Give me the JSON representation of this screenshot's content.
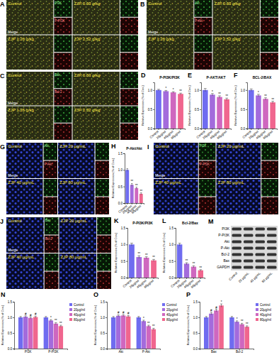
{
  "chart_data": [
    {
      "type": "bar",
      "panel": "D",
      "title": "P-PI3K/PI3K",
      "y_label": "Relative Expression (% of Con.)",
      "categories": [
        "Control",
        "20μg/ml",
        "40μg/ml",
        "80μg/ml"
      ],
      "values": [
        1.0,
        0.97,
        0.94,
        0.9
      ],
      "errors": [
        0.02,
        0.02,
        0.02,
        0.02
      ],
      "annotations": [
        null,
        "*",
        "*",
        "**"
      ],
      "colors": [
        "#6f6cf0",
        "#a36bdc",
        "#cf67bf",
        "#f0668e"
      ],
      "ylim": [
        0,
        1.2
      ],
      "yticks": [
        {
          "value": 0,
          "label": "0.0"
        },
        {
          "value": 0.5,
          "label": "0.5"
        },
        {
          "value": 1,
          "label": "1.0"
        }
      ]
    },
    {
      "type": "bar",
      "panel": "E",
      "title": "P-AKT/AKT",
      "y_label": "Relative Expression (% of Con.)",
      "categories": [
        "Control",
        "20μg/ml",
        "40μg/ml",
        "80μg/ml"
      ],
      "values": [
        1.0,
        0.88,
        0.82,
        0.76
      ],
      "errors": [
        0.04,
        0.03,
        0.03,
        0.03
      ],
      "annotations": [
        null,
        "*",
        "**",
        "**"
      ],
      "colors": [
        "#6f6cf0",
        "#a36bdc",
        "#cf67bf",
        "#f0668e"
      ],
      "ylim": [
        0,
        1.2
      ],
      "yticks": [
        {
          "value": 0,
          "label": "0.0"
        },
        {
          "value": 0.5,
          "label": "0.5"
        },
        {
          "value": 1,
          "label": "1.0"
        }
      ]
    },
    {
      "type": "bar",
      "panel": "F",
      "title": "BCL-2/BAX",
      "y_label": "Relative Expression (% of Con.)",
      "categories": [
        "Control",
        "20μg/ml",
        "40μg/ml",
        "80μg/ml"
      ],
      "values": [
        1.0,
        0.86,
        0.77,
        0.68
      ],
      "errors": [
        0.03,
        0.03,
        0.03,
        0.03
      ],
      "annotations": [
        null,
        "*",
        "**",
        "**"
      ],
      "colors": [
        "#6f6cf0",
        "#a36bdc",
        "#cf67bf",
        "#f0668e"
      ],
      "ylim": [
        0,
        1.2
      ],
      "yticks": [
        {
          "value": 0,
          "label": "0.0"
        },
        {
          "value": 0.5,
          "label": "0.5"
        },
        {
          "value": 1,
          "label": "1.0"
        }
      ]
    },
    {
      "type": "bar",
      "panel": "H",
      "title": "P-Akt/Akt",
      "y_label": "Relative Expression (% of Con.)",
      "categories": [
        "Control",
        "20μg/ml",
        "40μg/ml",
        "80μg/ml"
      ],
      "values": [
        1.0,
        0.55,
        0.45,
        0.28
      ],
      "errors": [
        0.04,
        0.04,
        0.03,
        0.03
      ],
      "annotations": [
        null,
        "**",
        "**",
        "**"
      ],
      "colors": [
        "#6f6cf0",
        "#a36bdc",
        "#cf67bf",
        "#f0668e"
      ],
      "ylim": [
        0,
        1.5
      ],
      "yticks": [
        {
          "value": 0,
          "label": "0.0"
        },
        {
          "value": 0.5,
          "label": "0.5"
        },
        {
          "value": 1,
          "label": "1.0"
        },
        {
          "value": 1.5,
          "label": "1.5"
        }
      ]
    },
    {
      "type": "bar",
      "panel": "K",
      "title": "P-PI3K/PI3K",
      "y_label": "Relative Expression (% of Con.)",
      "categories": [
        "Control",
        "20μg/ml",
        "40μg/ml",
        "80μg/ml"
      ],
      "values": [
        1.0,
        0.62,
        0.6,
        0.52
      ],
      "errors": [
        0.04,
        0.04,
        0.03,
        0.03
      ],
      "annotations": [
        null,
        "**",
        "**",
        "**"
      ],
      "colors": [
        "#6f6cf0",
        "#a36bdc",
        "#cf67bf",
        "#f0668e"
      ],
      "ylim": [
        0,
        1.5
      ],
      "yticks": [
        {
          "value": 0,
          "label": "0.0"
        },
        {
          "value": 0.5,
          "label": "0.5"
        },
        {
          "value": 1,
          "label": "1.0"
        },
        {
          "value": 1.5,
          "label": "1.5"
        }
      ]
    },
    {
      "type": "bar",
      "panel": "L",
      "title": "Bcl-2/Bax",
      "y_label": "Relative Expression (% of Con.)",
      "categories": [
        "Control",
        "20μg/ml",
        "40μg/ml",
        "80μg/ml"
      ],
      "values": [
        1.0,
        0.42,
        0.33,
        0.22
      ],
      "errors": [
        0.04,
        0.03,
        0.03,
        0.02
      ],
      "annotations": [
        null,
        "**",
        "**",
        "**"
      ],
      "colors": [
        "#6f6cf0",
        "#a36bdc",
        "#cf67bf",
        "#f0668e"
      ],
      "ylim": [
        0,
        1.5
      ],
      "yticks": [
        {
          "value": 0,
          "label": "0.0"
        },
        {
          "value": 0.5,
          "label": "0.5"
        },
        {
          "value": 1,
          "label": "1.0"
        },
        {
          "value": 1.5,
          "label": "1.5"
        }
      ]
    },
    {
      "type": "bar",
      "panel": "N",
      "y_label": "Relative Expression (% of Con.)",
      "categories": [
        "PI3K",
        "P-PI3K"
      ],
      "series": [
        {
          "name": "Control",
          "color": "#6f6cf0",
          "values": [
            1.0,
            1.0
          ],
          "errors": [
            0.03,
            0.03
          ],
          "annotations": [
            null,
            null
          ]
        },
        {
          "name": "20μg/ml",
          "color": "#a36bdc",
          "values": [
            1.02,
            0.9
          ],
          "errors": [
            0.03,
            0.03
          ],
          "annotations": [
            "#",
            "*"
          ]
        },
        {
          "name": "40μg/ml",
          "color": "#cf67bf",
          "values": [
            0.98,
            0.8
          ],
          "errors": [
            0.03,
            0.03
          ],
          "annotations": [
            "#",
            "**"
          ]
        },
        {
          "name": "80μg/ml",
          "color": "#f0668e",
          "values": [
            1.01,
            0.72
          ],
          "errors": [
            0.03,
            0.03
          ],
          "annotations": [
            "#",
            "**"
          ]
        }
      ],
      "legend": "right",
      "ylim": [
        0,
        1.5
      ],
      "yticks": [
        {
          "value": 0,
          "label": "0.0"
        },
        {
          "value": 0.5,
          "label": "0.5"
        },
        {
          "value": 1,
          "label": "1.0"
        },
        {
          "value": 1.5,
          "label": "1.5"
        }
      ]
    },
    {
      "type": "bar",
      "panel": "O",
      "y_label": "Relative Expression (% of Con.)",
      "categories": [
        "Akt",
        "P-Akt"
      ],
      "series": [
        {
          "name": "Control",
          "color": "#6f6cf0",
          "values": [
            1.0,
            1.0
          ],
          "errors": [
            0.03,
            0.03
          ],
          "annotations": [
            null,
            null
          ]
        },
        {
          "name": "20μg/ml",
          "color": "#a36bdc",
          "values": [
            1.05,
            0.88
          ],
          "errors": [
            0.03,
            0.03
          ],
          "annotations": [
            "#",
            "*"
          ]
        },
        {
          "name": "40μg/ml",
          "color": "#cf67bf",
          "values": [
            1.06,
            0.72
          ],
          "errors": [
            0.03,
            0.03
          ],
          "annotations": [
            "#",
            "**"
          ]
        },
        {
          "name": "80μg/ml",
          "color": "#f0668e",
          "values": [
            1.03,
            0.62
          ],
          "errors": [
            0.03,
            0.03
          ],
          "annotations": [
            "#",
            "**"
          ]
        }
      ],
      "legend": "right",
      "ylim": [
        0,
        1.5
      ],
      "yticks": [
        {
          "value": 0,
          "label": "0.0"
        },
        {
          "value": 0.5,
          "label": "0.5"
        },
        {
          "value": 1,
          "label": "1.0"
        },
        {
          "value": 1.5,
          "label": "1.5"
        }
      ]
    },
    {
      "type": "bar",
      "panel": "P",
      "y_label": "Relative Expression (% of Con.)",
      "categories": [
        "Bax",
        "Bcl-2"
      ],
      "series": [
        {
          "name": "Control",
          "color": "#6f6cf0",
          "values": [
            1.0,
            1.0
          ],
          "errors": [
            0.03,
            0.03
          ],
          "annotations": [
            null,
            null
          ]
        },
        {
          "name": "20μg/ml",
          "color": "#a36bdc",
          "values": [
            1.12,
            0.86
          ],
          "errors": [
            0.04,
            0.03
          ],
          "annotations": [
            "#",
            "*"
          ]
        },
        {
          "name": "40μg/ml",
          "color": "#cf67bf",
          "values": [
            1.22,
            0.78
          ],
          "errors": [
            0.04,
            0.03
          ],
          "annotations": [
            "#",
            "**"
          ]
        },
        {
          "name": "80μg/ml",
          "color": "#f0668e",
          "values": [
            1.38,
            0.7
          ],
          "errors": [
            0.05,
            0.03
          ],
          "annotations": [
            "*",
            "**"
          ]
        }
      ],
      "legend": "right",
      "ylim": [
        0,
        1.5
      ],
      "yticks": [
        {
          "value": 0,
          "label": "0.0"
        },
        {
          "value": 0.5,
          "label": "0.5"
        },
        {
          "value": 1,
          "label": "1.0"
        },
        {
          "value": 1.5,
          "label": "1.5"
        }
      ]
    }
  ],
  "image_panels": [
    {
      "panel": "A",
      "conditions": [
        "Control",
        "ZJP 0.63 g/kg",
        "ZJP 1.26 g/kg",
        "ZJP 2.52 g/kg"
      ],
      "channels": [
        "PI3K",
        "P-PI3K"
      ],
      "merge": "Merge"
    },
    {
      "panel": "B",
      "conditions": [
        "Control",
        "ZJP 0.63 g/kg",
        "ZJP 1.26 g/kg",
        "ZJP 2.52 g/kg"
      ],
      "channels": [
        "Akt",
        "P-Akt"
      ],
      "merge": "Merge"
    },
    {
      "panel": "C",
      "conditions": [
        "Control",
        "ZJP 0.63 g/kg",
        "ZJP 1.26 g/kg",
        "ZJP 2.52 g/kg"
      ],
      "channels": [
        "Bax",
        "Bcl-2"
      ],
      "merge": "Merge"
    },
    {
      "panel": "G",
      "conditions": [
        "Control",
        "ZJP 20 μg/mL",
        "ZJP 40 μg/mL",
        "ZJP 80 μg/mL"
      ],
      "channels": [
        "Akt",
        "P-Akt"
      ],
      "merge": "Merge"
    },
    {
      "panel": "I",
      "conditions": [
        "Control",
        "ZJP 20 μg/mL",
        "ZJP 40 μg/mL",
        "ZJP 80 μg/mL"
      ],
      "channels": [
        "PI3K",
        "P-PI3K"
      ],
      "merge": "Merge"
    },
    {
      "panel": "J",
      "conditions": [
        "Control",
        "ZJP 20 μg/mL",
        "ZJP 40 μg/mL",
        "ZJP 80 μg/mL"
      ],
      "channels": [
        "Bax",
        "Bcl-2"
      ],
      "merge": "Merge"
    }
  ],
  "western_blot": {
    "panel": "M",
    "rows": [
      "PI3K",
      "P-PI3K",
      "Akt",
      "P-Akt",
      "Bcl-2",
      "Bax",
      "GAPDH"
    ],
    "lanes": [
      "Control",
      "20 μg/mL",
      "40 μg/mL",
      "80 μg/mL"
    ]
  }
}
